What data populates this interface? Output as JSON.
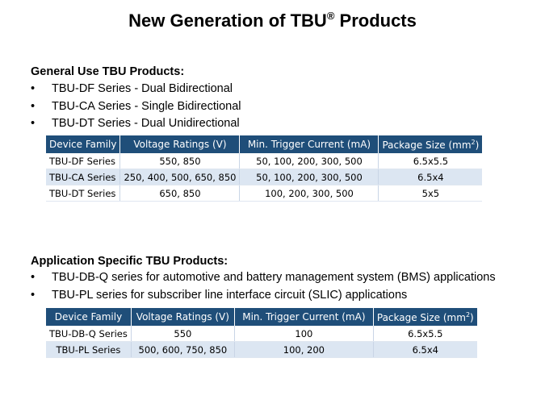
{
  "title": {
    "text": "New Generation of TBU",
    "reg_mark": "®",
    "suffix": " Products"
  },
  "general": {
    "heading": "General Use TBU Products:",
    "bullets": [
      "TBU-DF Series - Dual Bidirectional",
      "TBU-CA Series - Single Bidirectional",
      "TBU-DT Series - Dual Unidirectional"
    ],
    "table": {
      "headers": [
        "Device Family",
        "Voltage Ratings (V)",
        "Min. Trigger Current (mA)",
        "Package Size (mm",
        "2",
        ")"
      ],
      "rows": [
        [
          "TBU-DF Series",
          "550, 850",
          "50, 100, 200, 300, 500",
          "6.5x5.5"
        ],
        [
          "TBU-CA Series",
          "250, 400, 500, 650, 850",
          "50, 100, 200, 300, 500",
          "6.5x4"
        ],
        [
          "TBU-DT Series",
          "650, 850",
          "100, 200, 300, 500",
          "5x5"
        ]
      ]
    }
  },
  "application": {
    "heading": "Application  Specific TBU Products:",
    "bullets": [
      "TBU-DB-Q series for automotive and battery management system (BMS) applications",
      "TBU-PL series for subscriber line interface circuit (SLIC) applications"
    ],
    "table": {
      "headers": [
        "Device Family",
        "Voltage Ratings (V)",
        "Min. Trigger Current (mA)",
        "Package Size (mm",
        "2",
        ")"
      ],
      "rows": [
        [
          "TBU-DB-Q Series",
          "550",
          "100",
          "6.5x5.5"
        ],
        [
          "TBU-PL Series",
          "500, 600, 750, 850",
          "100, 200",
          "6.5x4"
        ]
      ]
    }
  },
  "bullet_symbol": "•"
}
